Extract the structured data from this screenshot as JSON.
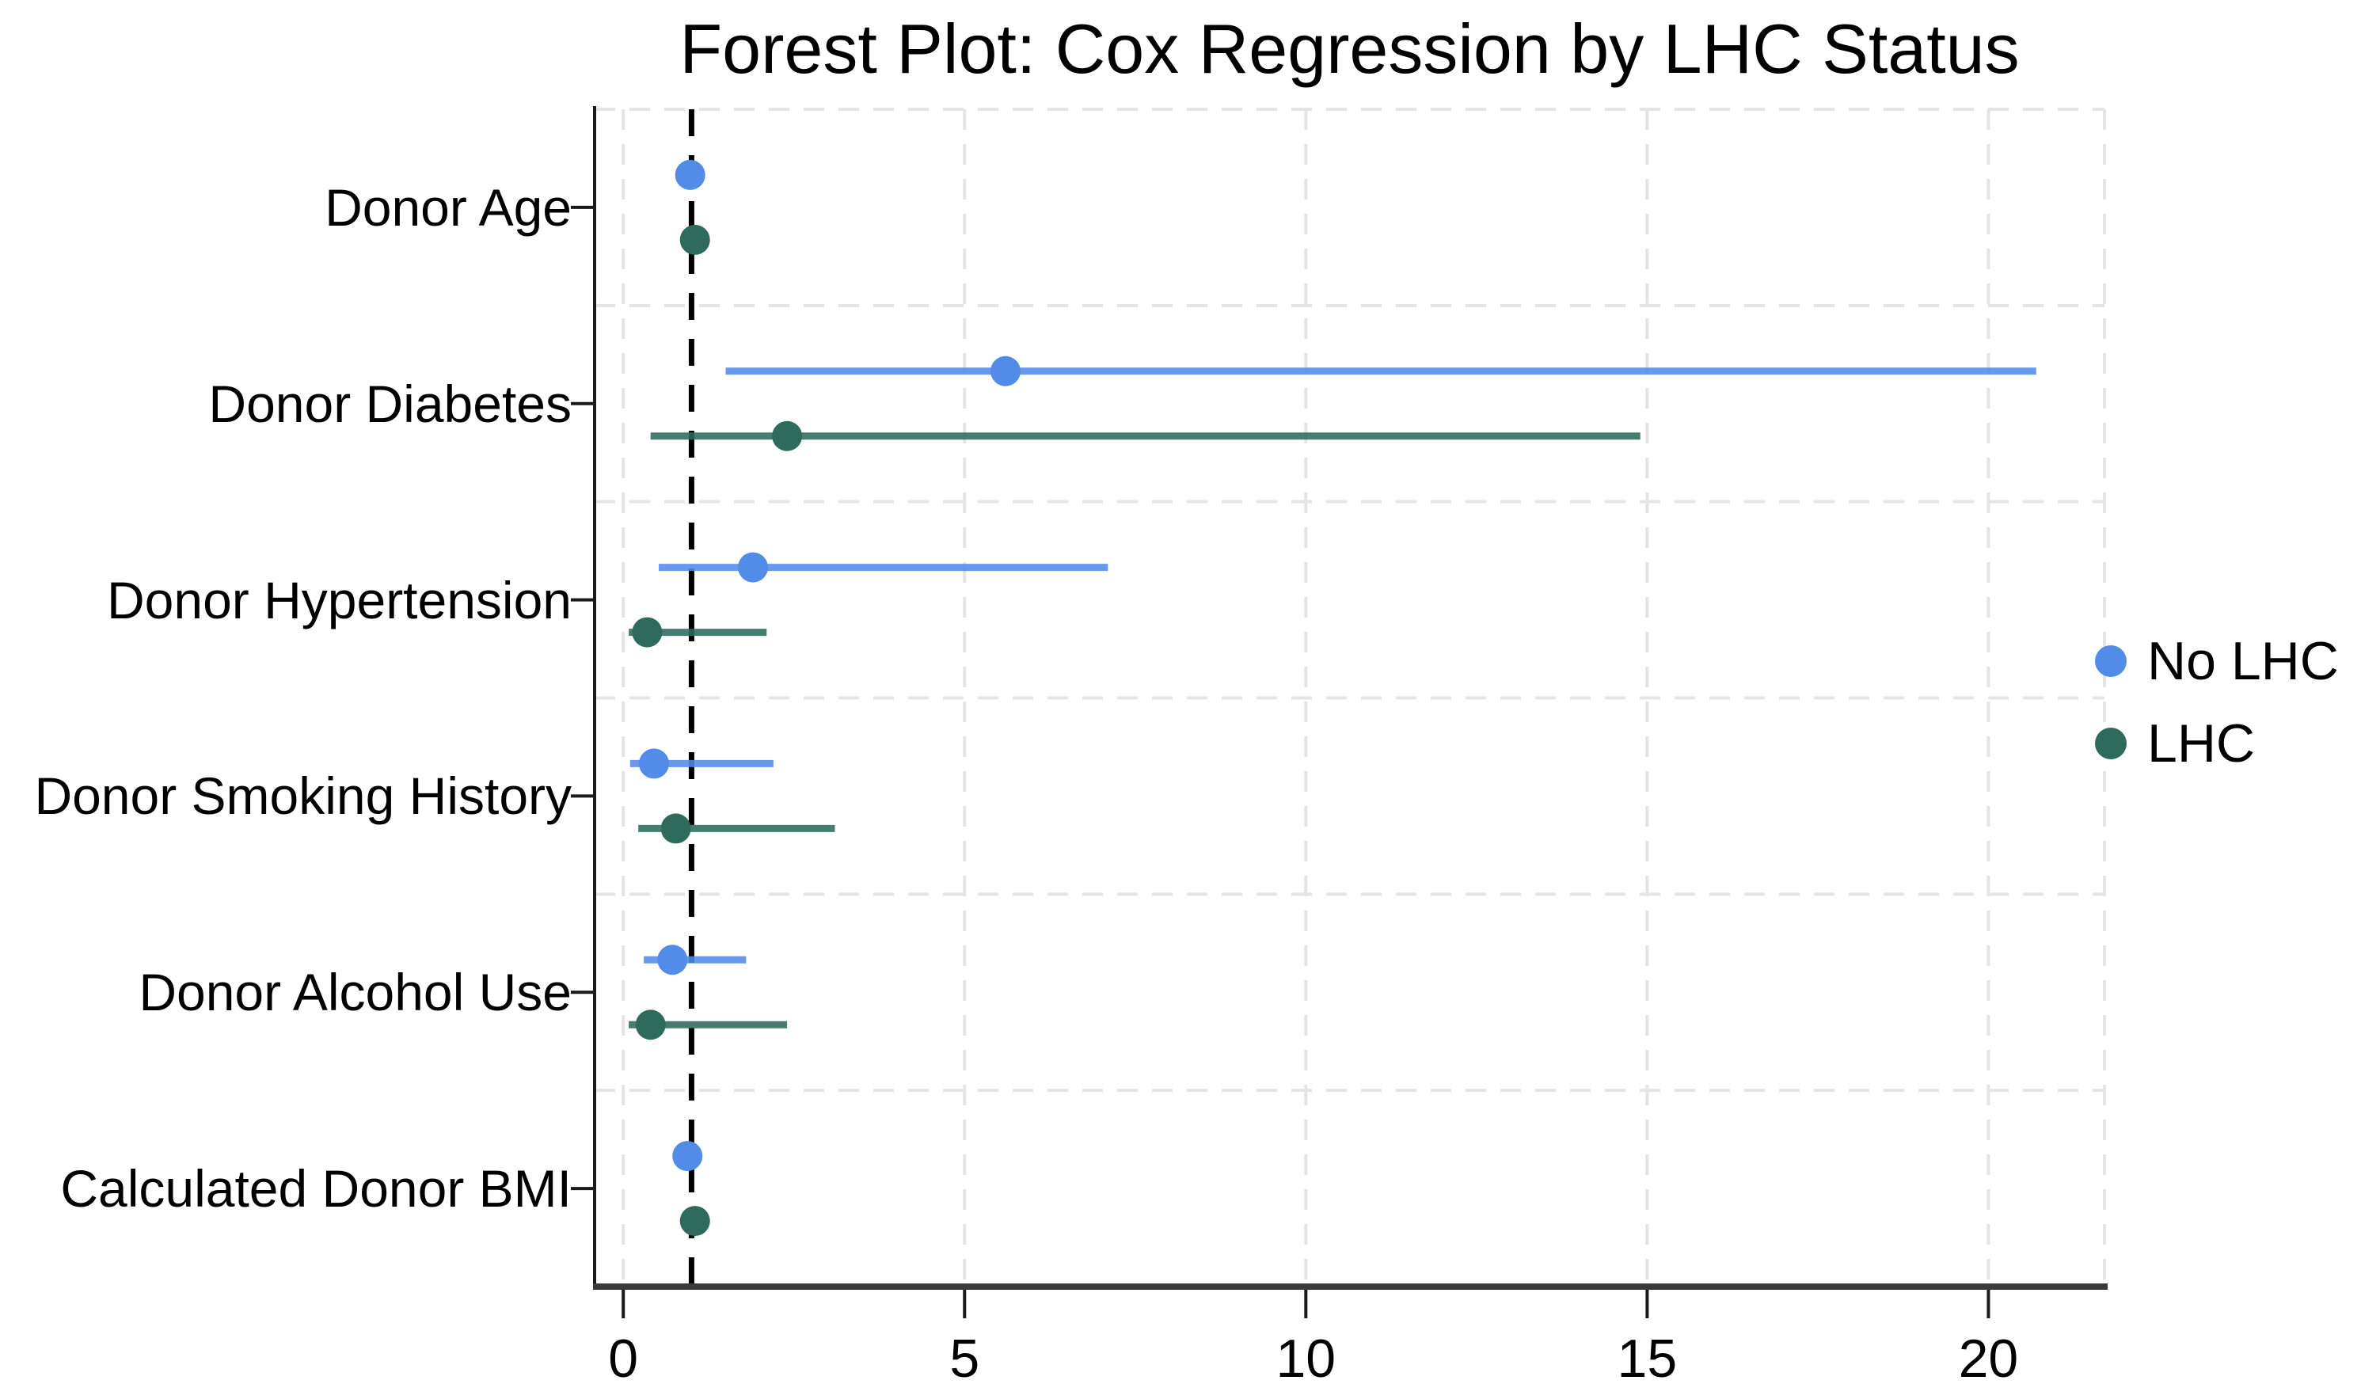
{
  "chart_data": {
    "type": "forest",
    "title": "Forest Plot: Cox Regression by LHC Status",
    "orientation": "horizontal",
    "categories": [
      "Donor Age",
      "Donor Diabetes",
      "Donor Hypertension",
      "Donor Smoking History",
      "Donor Alcohol Use",
      "Calculated Donor BMI"
    ],
    "x_axis": {
      "ticks": [
        0,
        5,
        10,
        15,
        20
      ],
      "tick_labels": [
        "0",
        "5",
        "10",
        "15",
        "20"
      ],
      "lim": [
        -0.42,
        21.7
      ]
    },
    "reference_line_x": 1.0,
    "grid": {
      "show": true,
      "style": "dashed",
      "color": "#e4e4e4"
    },
    "legend": {
      "position": "center-right",
      "labels": [
        "No LHC",
        "LHC"
      ]
    },
    "series": [
      {
        "name": "No LHC",
        "color": "#538be8",
        "points": [
          {
            "category": "Donor Age",
            "hr": 0.98,
            "ci_low": 0.94,
            "ci_high": 1.02
          },
          {
            "category": "Donor Diabetes",
            "hr": 5.6,
            "ci_low": 1.5,
            "ci_high": 20.7
          },
          {
            "category": "Donor Hypertension",
            "hr": 1.9,
            "ci_low": 0.52,
            "ci_high": 7.1
          },
          {
            "category": "Donor Smoking History",
            "hr": 0.45,
            "ci_low": 0.1,
            "ci_high": 2.2
          },
          {
            "category": "Donor Alcohol Use",
            "hr": 0.72,
            "ci_low": 0.3,
            "ci_high": 1.8
          },
          {
            "category": "Calculated Donor BMI",
            "hr": 0.94,
            "ci_low": 0.89,
            "ci_high": 0.99
          }
        ]
      },
      {
        "name": "LHC",
        "color": "#2e6b5c",
        "points": [
          {
            "category": "Donor Age",
            "hr": 1.05,
            "ci_low": 1.0,
            "ci_high": 1.1
          },
          {
            "category": "Donor Diabetes",
            "hr": 2.4,
            "ci_low": 0.4,
            "ci_high": 14.9
          },
          {
            "category": "Donor Hypertension",
            "hr": 0.35,
            "ci_low": 0.08,
            "ci_high": 2.1
          },
          {
            "category": "Donor Smoking History",
            "hr": 0.77,
            "ci_low": 0.22,
            "ci_high": 3.1
          },
          {
            "category": "Donor Alcohol Use",
            "hr": 0.4,
            "ci_low": 0.08,
            "ci_high": 2.4
          },
          {
            "category": "Calculated Donor BMI",
            "hr": 1.05,
            "ci_low": 1.0,
            "ci_high": 1.1
          }
        ]
      }
    ],
    "style_colors": {
      "reference_line": "#000000",
      "left_spine": "#1a1a1a",
      "bottom_spine": "#3a3a3a",
      "gridline": "#e4e4e4"
    }
  }
}
